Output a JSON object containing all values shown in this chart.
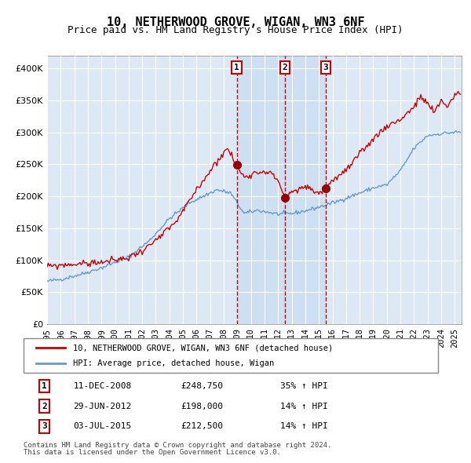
{
  "title": "10, NETHERWOOD GROVE, WIGAN, WN3 6NF",
  "subtitle": "Price paid vs. HM Land Registry's House Price Index (HPI)",
  "legend_label_red": "10, NETHERWOOD GROVE, WIGAN, WN3 6NF (detached house)",
  "legend_label_blue": "HPI: Average price, detached house, Wigan",
  "footnote1": "Contains HM Land Registry data © Crown copyright and database right 2024.",
  "footnote2": "This data is licensed under the Open Government Licence v3.0.",
  "transactions": [
    {
      "num": 1,
      "date": "2008-12-11",
      "price": 248750,
      "pct": "35%",
      "dir": "↑"
    },
    {
      "num": 2,
      "date": "2012-06-29",
      "price": 198000,
      "pct": "14%",
      "dir": "↑"
    },
    {
      "num": 3,
      "date": "2015-07-03",
      "price": 212500,
      "pct": "14%",
      "dir": "↑"
    }
  ],
  "table_rows": [
    [
      "1",
      "11-DEC-2008",
      "£248,750",
      "35% ↑ HPI"
    ],
    [
      "2",
      "29-JUN-2012",
      "£198,000",
      "14% ↑ HPI"
    ],
    [
      "3",
      "03-JUL-2015",
      "£212,500",
      "14% ↑ HPI"
    ]
  ],
  "hpi_color": "#6699cc",
  "price_color": "#cc0000",
  "bg_plot": "#dce9f5",
  "bg_shade": "#c8ddf0",
  "grid_color": "#ffffff",
  "vline_color": "#cc0000",
  "dot_color": "#990000",
  "ylim": [
    0,
    420000
  ],
  "yticks": [
    0,
    50000,
    100000,
    150000,
    200000,
    250000,
    300000,
    350000,
    400000
  ],
  "xstart": 1995.0,
  "xend": 2025.5
}
